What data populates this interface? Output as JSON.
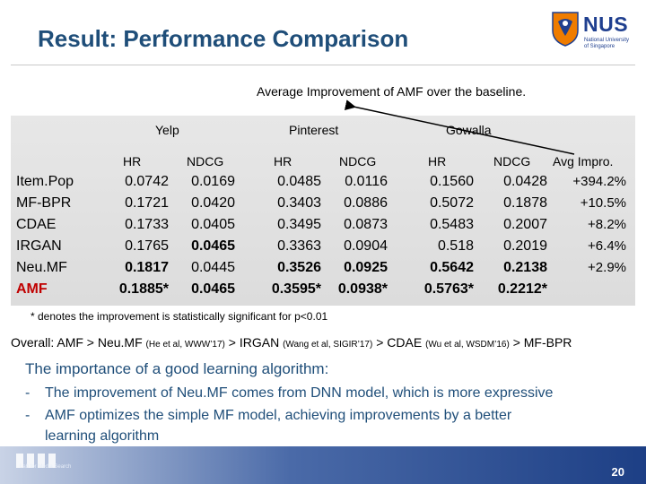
{
  "slide": {
    "title": "Result: Performance Comparison",
    "page_number": "20"
  },
  "logo": {
    "name": "NUS",
    "subtitle_line1": "National University",
    "subtitle_line2": "of Singapore"
  },
  "table": {
    "caption": "Average Improvement of AMF over the baseline.",
    "groups": [
      "Yelp",
      "Pinterest",
      "Gowalla"
    ],
    "metric_headers": [
      "HR",
      "NDCG",
      "HR",
      "NDCG",
      "HR",
      "NDCG"
    ],
    "avg_header": "Avg Impro.",
    "rows": [
      {
        "model": "Item.Pop",
        "values": [
          "0.0742",
          "0.0169",
          "0.0485",
          "0.0116",
          "0.1560",
          "0.0428"
        ],
        "avg": "+394.2%"
      },
      {
        "model": "MF-BPR",
        "values": [
          "0.1721",
          "0.0420",
          "0.3403",
          "0.0886",
          "0.5072",
          "0.1878"
        ],
        "avg": "+10.5%"
      },
      {
        "model": "CDAE",
        "values": [
          "0.1733",
          "0.0405",
          "0.3495",
          "0.0873",
          "0.5483",
          "0.2007"
        ],
        "avg": "+8.2%"
      },
      {
        "model": "IRGAN",
        "values": [
          "0.1765",
          "0.0465",
          "0.3363",
          "0.0904",
          "0.518",
          "0.2019"
        ],
        "avg": "+6.4%"
      },
      {
        "model": "Neu.MF",
        "values": [
          "0.1817",
          "0.0445",
          "0.3526",
          "0.0925",
          "0.5642",
          "0.2138"
        ],
        "avg": "+2.9%"
      },
      {
        "model": "AMF",
        "values": [
          "0.1885*",
          "0.0465",
          "0.3595*",
          "0.0938*",
          "0.5763*",
          "0.2212*"
        ],
        "avg": ""
      }
    ],
    "footnote": "* denotes the improvement is statistically significant for p<0.01"
  },
  "overall": {
    "lead": "Overall: AMF > Neu.MF",
    "neumf_ref": "(He et al, WWW’17)",
    "irgan": "> IRGAN",
    "irgan_ref": "(Wang et al, SIGIR’17)",
    "cdae": "> CDAE",
    "cdae_ref": "(Wu et al, WSDM’16)",
    "tail": "> MF-BPR"
  },
  "importance": {
    "title": "The importance of a good learning algorithm:",
    "bullets": [
      "The improvement of Neu.MF comes from DNN model, which is more expressive",
      "AMF optimizes the simple MF model, achieving improvements by a better",
      "learning algorithm"
    ]
  },
  "footer": {
    "lab_name": "Lab for Media Search"
  },
  "colors": {
    "title": "#1f4e79",
    "highlight_row": "#c00000",
    "bottom_band": "#1d3f85"
  }
}
